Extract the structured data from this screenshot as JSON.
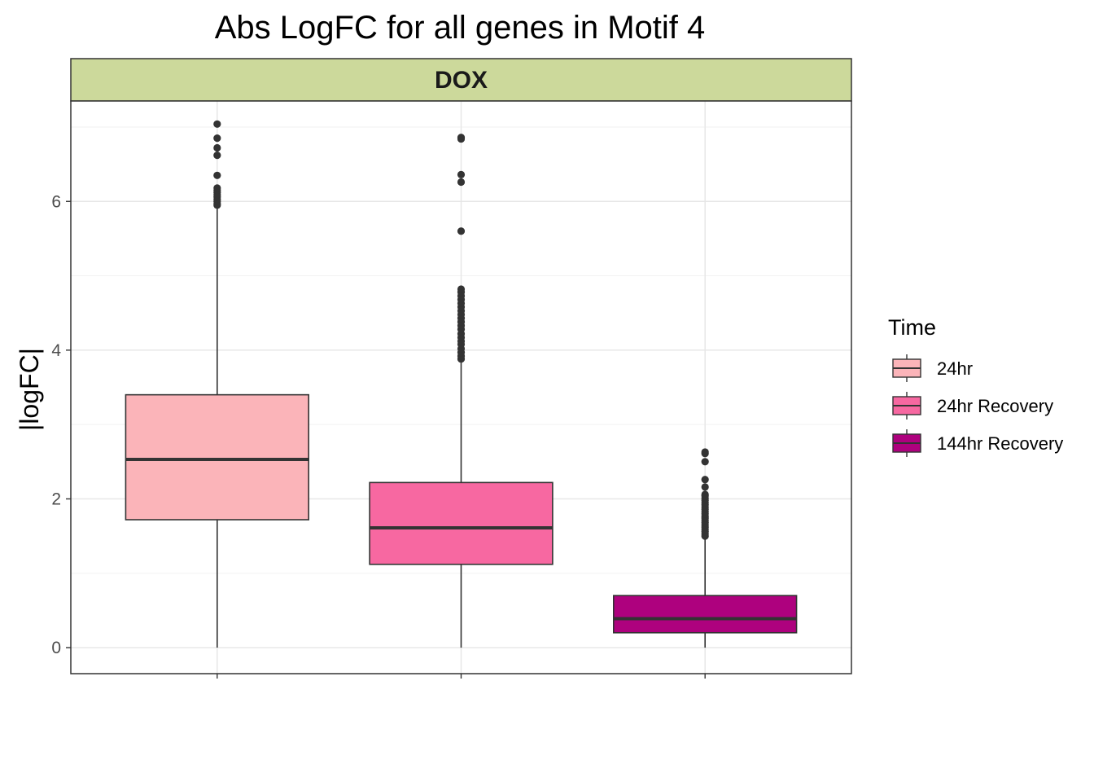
{
  "chart_data": {
    "type": "box",
    "title": "Abs LogFC for all genes in Motif 4",
    "facet_label": "DOX",
    "xlabel": "",
    "ylabel": "|logFC|",
    "ylim": [
      -0.35,
      7.35
    ],
    "yticks": [
      0,
      2,
      4,
      6
    ],
    "grid": true,
    "legend": {
      "title": "Time",
      "placement": "right"
    },
    "categories": [
      "24hr",
      "24hr Recovery",
      "144hr Recovery"
    ],
    "series": [
      {
        "name": "24hr",
        "color": "#FBB4B9",
        "stats": {
          "min": 0.0,
          "q1": 1.72,
          "median": 2.53,
          "q3": 3.4,
          "whisker_high": 5.93
        },
        "outliers": [
          5.95,
          5.97,
          6.0,
          6.03,
          6.06,
          6.09,
          6.12,
          6.15,
          6.18,
          6.35,
          6.62,
          6.72,
          6.85,
          7.04
        ]
      },
      {
        "name": "24hr Recovery",
        "color": "#F768A1",
        "stats": {
          "min": 0.0,
          "q1": 1.12,
          "median": 1.61,
          "q3": 2.22,
          "whisker_high": 3.85
        },
        "outliers": [
          3.88,
          3.92,
          3.97,
          4.02,
          4.08,
          4.12,
          4.17,
          4.22,
          4.28,
          4.33,
          4.38,
          4.43,
          4.48,
          4.53,
          4.58,
          4.63,
          4.68,
          4.73,
          4.78,
          4.82,
          5.6,
          6.26,
          6.36,
          6.84,
          6.86
        ]
      },
      {
        "name": "144hr Recovery",
        "color": "#AE017E",
        "stats": {
          "min": 0.0,
          "q1": 0.2,
          "median": 0.39,
          "q3": 0.7,
          "whisker_high": 1.47
        },
        "outliers": [
          1.5,
          1.53,
          1.56,
          1.59,
          1.62,
          1.65,
          1.68,
          1.71,
          1.74,
          1.77,
          1.8,
          1.83,
          1.86,
          1.89,
          1.92,
          1.95,
          1.98,
          2.01,
          2.04,
          2.06,
          2.16,
          2.26,
          2.5,
          2.61,
          2.63
        ]
      }
    ]
  }
}
